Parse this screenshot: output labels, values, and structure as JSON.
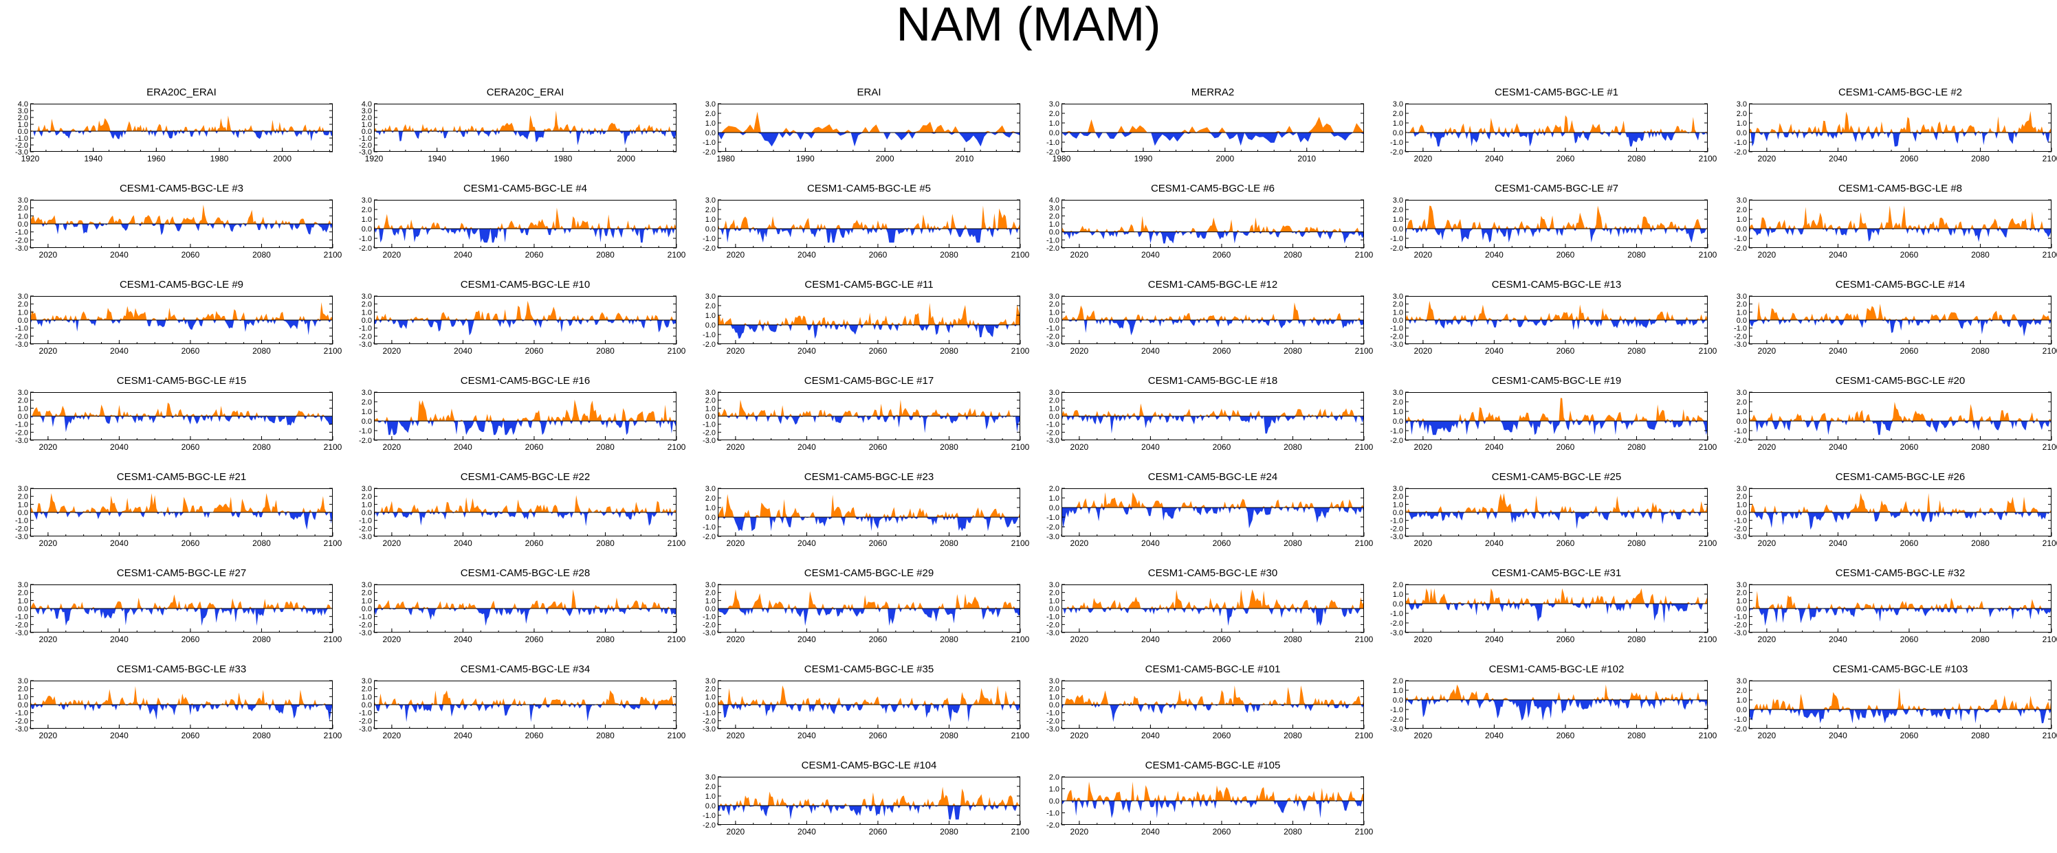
{
  "figure_title": "NAM (MAM)",
  "colors": {
    "positive": "#ff8000",
    "negative": "#1a3de6",
    "axis": "#000000"
  },
  "chart_data": {
    "type": "area",
    "note": "Shaded time series of the NAM index for MAM; positive values orange, negative values blue.",
    "panels": [
      {
        "title": "ERA20C_ERAI",
        "x_range": [
          1920,
          2016
        ],
        "x_ticks": [
          "1920",
          "1940",
          "1960",
          "1980",
          "2000"
        ],
        "y_ticks": [
          "4.0",
          "3.0",
          "2.0",
          "1.0",
          "0.0",
          "-1.0",
          "-2.0",
          "-3.0"
        ],
        "y_range": [
          -3,
          4
        ]
      },
      {
        "title": "CERA20C_ERAI",
        "x_range": [
          1920,
          2016
        ],
        "x_ticks": [
          "1920",
          "1940",
          "1960",
          "1980",
          "2000"
        ],
        "y_ticks": [
          "4.0",
          "3.0",
          "2.0",
          "1.0",
          "0.0",
          "-1.0",
          "-2.0",
          "-3.0"
        ],
        "y_range": [
          -3,
          4
        ]
      },
      {
        "title": "ERAI",
        "x_range": [
          1979,
          2017
        ],
        "x_ticks": [
          "1980",
          "1990",
          "2000",
          "2010"
        ],
        "y_ticks": [
          "3.0",
          "2.0",
          "1.0",
          "0.0",
          "-1.0",
          "-2.0"
        ],
        "y_range": [
          -2,
          3
        ]
      },
      {
        "title": "MERRA2",
        "x_range": [
          1980,
          2017
        ],
        "x_ticks": [
          "1980",
          "1990",
          "2000",
          "2010"
        ],
        "y_ticks": [
          "3.0",
          "2.0",
          "1.0",
          "0.0",
          "-1.0",
          "-2.0"
        ],
        "y_range": [
          -2,
          3
        ]
      },
      {
        "title": "CESM1-CAM5-BGC-LE #1",
        "x_range": [
          2015,
          2100
        ],
        "x_ticks": [
          "2020",
          "2040",
          "2060",
          "2080",
          "2100"
        ],
        "y_ticks": [
          "3.0",
          "2.0",
          "1.0",
          "0.0",
          "-1.0",
          "-2.0"
        ],
        "y_range": [
          -2,
          3
        ]
      },
      {
        "title": "CESM1-CAM5-BGC-LE #2",
        "x_range": [
          2015,
          2100
        ],
        "x_ticks": [
          "2020",
          "2040",
          "2060",
          "2080",
          "2100"
        ],
        "y_ticks": [
          "3.0",
          "2.0",
          "1.0",
          "0.0",
          "-1.0",
          "-2.0"
        ],
        "y_range": [
          -2,
          3
        ]
      },
      {
        "title": "CESM1-CAM5-BGC-LE #3",
        "x_range": [
          2015,
          2100
        ],
        "x_ticks": [
          "2020",
          "2040",
          "2060",
          "2080",
          "2100"
        ],
        "y_ticks": [
          "3.0",
          "2.0",
          "1.0",
          "0.0",
          "-1.0",
          "-2.0",
          "-3.0"
        ],
        "y_range": [
          -3,
          3
        ]
      },
      {
        "title": "CESM1-CAM5-BGC-LE #4",
        "x_range": [
          2015,
          2100
        ],
        "x_ticks": [
          "2020",
          "2040",
          "2060",
          "2080",
          "2100"
        ],
        "y_ticks": [
          "3.0",
          "2.0",
          "1.0",
          "0.0",
          "-1.0",
          "-2.0"
        ],
        "y_range": [
          -2,
          3
        ]
      },
      {
        "title": "CESM1-CAM5-BGC-LE #5",
        "x_range": [
          2015,
          2100
        ],
        "x_ticks": [
          "2020",
          "2040",
          "2060",
          "2080",
          "2100"
        ],
        "y_ticks": [
          "3.0",
          "2.0",
          "1.0",
          "0.0",
          "-1.0",
          "-2.0"
        ],
        "y_range": [
          -2,
          3
        ]
      },
      {
        "title": "CESM1-CAM5-BGC-LE #6",
        "x_range": [
          2015,
          2100
        ],
        "x_ticks": [
          "2020",
          "2040",
          "2060",
          "2080",
          "2100"
        ],
        "y_ticks": [
          "4.0",
          "3.0",
          "2.0",
          "1.0",
          "0.0",
          "-1.0",
          "-2.0"
        ],
        "y_range": [
          -2,
          4
        ]
      },
      {
        "title": "CESM1-CAM5-BGC-LE #7",
        "x_range": [
          2015,
          2100
        ],
        "x_ticks": [
          "2020",
          "2040",
          "2060",
          "2080",
          "2100"
        ],
        "y_ticks": [
          "3.0",
          "2.0",
          "1.0",
          "0.0",
          "-1.0",
          "-2.0"
        ],
        "y_range": [
          -2,
          3
        ]
      },
      {
        "title": "CESM1-CAM5-BGC-LE #8",
        "x_range": [
          2015,
          2100
        ],
        "x_ticks": [
          "2020",
          "2040",
          "2060",
          "2080",
          "2100"
        ],
        "y_ticks": [
          "3.0",
          "2.0",
          "1.0",
          "0.0",
          "-1.0",
          "-2.0"
        ],
        "y_range": [
          -2,
          3
        ]
      },
      {
        "title": "CESM1-CAM5-BGC-LE #9",
        "x_range": [
          2015,
          2100
        ],
        "x_ticks": [
          "2020",
          "2040",
          "2060",
          "2080",
          "2100"
        ],
        "y_ticks": [
          "3.0",
          "2.0",
          "1.0",
          "0.0",
          "-1.0",
          "-2.0",
          "-3.0"
        ],
        "y_range": [
          -3,
          3
        ]
      },
      {
        "title": "CESM1-CAM5-BGC-LE #10",
        "x_range": [
          2015,
          2100
        ],
        "x_ticks": [
          "2020",
          "2040",
          "2060",
          "2080",
          "2100"
        ],
        "y_ticks": [
          "3.0",
          "2.0",
          "1.0",
          "0.0",
          "-1.0",
          "-2.0",
          "-3.0"
        ],
        "y_range": [
          -3,
          3
        ]
      },
      {
        "title": "CESM1-CAM5-BGC-LE #11",
        "x_range": [
          2015,
          2100
        ],
        "x_ticks": [
          "2020",
          "2040",
          "2060",
          "2080",
          "2100"
        ],
        "y_ticks": [
          "3.0",
          "2.0",
          "1.0",
          "0.0",
          "-1.0",
          "-2.0"
        ],
        "y_range": [
          -2,
          3
        ]
      },
      {
        "title": "CESM1-CAM5-BGC-LE #12",
        "x_range": [
          2015,
          2100
        ],
        "x_ticks": [
          "2020",
          "2040",
          "2060",
          "2080",
          "2100"
        ],
        "y_ticks": [
          "3.0",
          "2.0",
          "1.0",
          "0.0",
          "-1.0",
          "-2.0",
          "-3.0"
        ],
        "y_range": [
          -3,
          3
        ]
      },
      {
        "title": "CESM1-CAM5-BGC-LE #13",
        "x_range": [
          2015,
          2100
        ],
        "x_ticks": [
          "2020",
          "2040",
          "2060",
          "2080",
          "2100"
        ],
        "y_ticks": [
          "3.0",
          "2.0",
          "1.0",
          "0.0",
          "-1.0",
          "-2.0",
          "-3.0"
        ],
        "y_range": [
          -3,
          3
        ]
      },
      {
        "title": "CESM1-CAM5-BGC-LE #14",
        "x_range": [
          2015,
          2100
        ],
        "x_ticks": [
          "2020",
          "2040",
          "2060",
          "2080",
          "2100"
        ],
        "y_ticks": [
          "3.0",
          "2.0",
          "1.0",
          "0.0",
          "-1.0",
          "-2.0",
          "-3.0"
        ],
        "y_range": [
          -3,
          3
        ]
      },
      {
        "title": "CESM1-CAM5-BGC-LE #15",
        "x_range": [
          2015,
          2100
        ],
        "x_ticks": [
          "2020",
          "2040",
          "2060",
          "2080",
          "2100"
        ],
        "y_ticks": [
          "3.0",
          "2.0",
          "1.0",
          "0.0",
          "-1.0",
          "-2.0",
          "-3.0"
        ],
        "y_range": [
          -3,
          3
        ]
      },
      {
        "title": "CESM1-CAM5-BGC-LE #16",
        "x_range": [
          2015,
          2100
        ],
        "x_ticks": [
          "2020",
          "2040",
          "2060",
          "2080",
          "2100"
        ],
        "y_ticks": [
          "3.0",
          "2.0",
          "1.0",
          "0.0",
          "-1.0",
          "-2.0"
        ],
        "y_range": [
          -2,
          3
        ]
      },
      {
        "title": "CESM1-CAM5-BGC-LE #17",
        "x_range": [
          2015,
          2100
        ],
        "x_ticks": [
          "2020",
          "2040",
          "2060",
          "2080",
          "2100"
        ],
        "y_ticks": [
          "3.0",
          "2.0",
          "1.0",
          "0.0",
          "-1.0",
          "-2.0",
          "-3.0"
        ],
        "y_range": [
          -3,
          3
        ]
      },
      {
        "title": "CESM1-CAM5-BGC-LE #18",
        "x_range": [
          2015,
          2100
        ],
        "x_ticks": [
          "2020",
          "2040",
          "2060",
          "2080",
          "2100"
        ],
        "y_ticks": [
          "3.0",
          "2.0",
          "1.0",
          "0.0",
          "-1.0",
          "-2.0",
          "-3.0"
        ],
        "y_range": [
          -3,
          3
        ]
      },
      {
        "title": "CESM1-CAM5-BGC-LE #19",
        "x_range": [
          2015,
          2100
        ],
        "x_ticks": [
          "2020",
          "2040",
          "2060",
          "2080",
          "2100"
        ],
        "y_ticks": [
          "3.0",
          "2.0",
          "1.0",
          "0.0",
          "-1.0",
          "-2.0"
        ],
        "y_range": [
          -2,
          3
        ]
      },
      {
        "title": "CESM1-CAM5-BGC-LE #20",
        "x_range": [
          2015,
          2100
        ],
        "x_ticks": [
          "2020",
          "2040",
          "2060",
          "2080",
          "2100"
        ],
        "y_ticks": [
          "3.0",
          "2.0",
          "1.0",
          "0.0",
          "-1.0",
          "-2.0"
        ],
        "y_range": [
          -2,
          3
        ]
      },
      {
        "title": "CESM1-CAM5-BGC-LE #21",
        "x_range": [
          2015,
          2100
        ],
        "x_ticks": [
          "2020",
          "2040",
          "2060",
          "2080",
          "2100"
        ],
        "y_ticks": [
          "3.0",
          "2.0",
          "1.0",
          "0.0",
          "-1.0",
          "-2.0",
          "-3.0"
        ],
        "y_range": [
          -3,
          3
        ]
      },
      {
        "title": "CESM1-CAM5-BGC-LE #22",
        "x_range": [
          2015,
          2100
        ],
        "x_ticks": [
          "2020",
          "2040",
          "2060",
          "2080",
          "2100"
        ],
        "y_ticks": [
          "3.0",
          "2.0",
          "1.0",
          "0.0",
          "-1.0",
          "-2.0",
          "-3.0"
        ],
        "y_range": [
          -3,
          3
        ]
      },
      {
        "title": "CESM1-CAM5-BGC-LE #23",
        "x_range": [
          2015,
          2100
        ],
        "x_ticks": [
          "2020",
          "2040",
          "2060",
          "2080",
          "2100"
        ],
        "y_ticks": [
          "3.0",
          "2.0",
          "1.0",
          "0.0",
          "-1.0",
          "-2.0"
        ],
        "y_range": [
          -2,
          3
        ]
      },
      {
        "title": "CESM1-CAM5-BGC-LE #24",
        "x_range": [
          2015,
          2100
        ],
        "x_ticks": [
          "2020",
          "2040",
          "2060",
          "2080",
          "2100"
        ],
        "y_ticks": [
          "2.0",
          "1.0",
          "0.0",
          "-1.0",
          "-2.0",
          "-3.0"
        ],
        "y_range": [
          -3,
          2
        ]
      },
      {
        "title": "CESM1-CAM5-BGC-LE #25",
        "x_range": [
          2015,
          2100
        ],
        "x_ticks": [
          "2020",
          "2040",
          "2060",
          "2080",
          "2100"
        ],
        "y_ticks": [
          "3.0",
          "2.0",
          "1.0",
          "0.0",
          "-1.0",
          "-2.0",
          "-3.0"
        ],
        "y_range": [
          -3,
          3
        ]
      },
      {
        "title": "CESM1-CAM5-BGC-LE #26",
        "x_range": [
          2015,
          2100
        ],
        "x_ticks": [
          "2020",
          "2040",
          "2060",
          "2080",
          "2100"
        ],
        "y_ticks": [
          "3.0",
          "2.0",
          "1.0",
          "0.0",
          "-1.0",
          "-2.0",
          "-3.0"
        ],
        "y_range": [
          -3,
          3
        ]
      },
      {
        "title": "CESM1-CAM5-BGC-LE #27",
        "x_range": [
          2015,
          2100
        ],
        "x_ticks": [
          "2020",
          "2040",
          "2060",
          "2080",
          "2100"
        ],
        "y_ticks": [
          "3.0",
          "2.0",
          "1.0",
          "0.0",
          "-1.0",
          "-2.0",
          "-3.0"
        ],
        "y_range": [
          -3,
          3
        ]
      },
      {
        "title": "CESM1-CAM5-BGC-LE #28",
        "x_range": [
          2015,
          2100
        ],
        "x_ticks": [
          "2020",
          "2040",
          "2060",
          "2080",
          "2100"
        ],
        "y_ticks": [
          "3.0",
          "2.0",
          "1.0",
          "0.0",
          "-1.0",
          "-2.0",
          "-3.0"
        ],
        "y_range": [
          -3,
          3
        ]
      },
      {
        "title": "CESM1-CAM5-BGC-LE #29",
        "x_range": [
          2015,
          2100
        ],
        "x_ticks": [
          "2020",
          "2040",
          "2060",
          "2080",
          "2100"
        ],
        "y_ticks": [
          "3.0",
          "2.0",
          "1.0",
          "0.0",
          "-1.0",
          "-2.0",
          "-3.0"
        ],
        "y_range": [
          -3,
          3
        ]
      },
      {
        "title": "CESM1-CAM5-BGC-LE #30",
        "x_range": [
          2015,
          2100
        ],
        "x_ticks": [
          "2020",
          "2040",
          "2060",
          "2080",
          "2100"
        ],
        "y_ticks": [
          "3.0",
          "2.0",
          "1.0",
          "0.0",
          "-1.0",
          "-2.0",
          "-3.0"
        ],
        "y_range": [
          -3,
          3
        ]
      },
      {
        "title": "CESM1-CAM5-BGC-LE #31",
        "x_range": [
          2015,
          2100
        ],
        "x_ticks": [
          "2020",
          "2040",
          "2060",
          "2080",
          "2100"
        ],
        "y_ticks": [
          "2.0",
          "1.0",
          "0.0",
          "-1.0",
          "-2.0",
          "-3.0"
        ],
        "y_range": [
          -3,
          2
        ]
      },
      {
        "title": "CESM1-CAM5-BGC-LE #32",
        "x_range": [
          2015,
          2100
        ],
        "x_ticks": [
          "2020",
          "2040",
          "2060",
          "2080",
          "2100"
        ],
        "y_ticks": [
          "3.0",
          "2.0",
          "1.0",
          "0.0",
          "-1.0",
          "-2.0",
          "-3.0"
        ],
        "y_range": [
          -3,
          3
        ]
      },
      {
        "title": "CESM1-CAM5-BGC-LE #33",
        "x_range": [
          2015,
          2100
        ],
        "x_ticks": [
          "2020",
          "2040",
          "2060",
          "2080",
          "2100"
        ],
        "y_ticks": [
          "3.0",
          "2.0",
          "1.0",
          "0.0",
          "-1.0",
          "-2.0",
          "-3.0"
        ],
        "y_range": [
          -3,
          3
        ]
      },
      {
        "title": "CESM1-CAM5-BGC-LE #34",
        "x_range": [
          2015,
          2100
        ],
        "x_ticks": [
          "2020",
          "2040",
          "2060",
          "2080",
          "2100"
        ],
        "y_ticks": [
          "3.0",
          "2.0",
          "1.0",
          "0.0",
          "-1.0",
          "-2.0",
          "-3.0"
        ],
        "y_range": [
          -3,
          3
        ]
      },
      {
        "title": "CESM1-CAM5-BGC-LE #35",
        "x_range": [
          2015,
          2100
        ],
        "x_ticks": [
          "2020",
          "2040",
          "2060",
          "2080",
          "2100"
        ],
        "y_ticks": [
          "3.0",
          "2.0",
          "1.0",
          "0.0",
          "-1.0",
          "-2.0",
          "-3.0"
        ],
        "y_range": [
          -3,
          3
        ]
      },
      {
        "title": "CESM1-CAM5-BGC-LE #101",
        "x_range": [
          2015,
          2100
        ],
        "x_ticks": [
          "2020",
          "2040",
          "2060",
          "2080",
          "2100"
        ],
        "y_ticks": [
          "3.0",
          "2.0",
          "1.0",
          "0.0",
          "-1.0",
          "-2.0",
          "-3.0"
        ],
        "y_range": [
          -3,
          3
        ]
      },
      {
        "title": "CESM1-CAM5-BGC-LE #102",
        "x_range": [
          2015,
          2100
        ],
        "x_ticks": [
          "2020",
          "2040",
          "2060",
          "2080",
          "2100"
        ],
        "y_ticks": [
          "2.0",
          "1.0",
          "0.0",
          "-1.0",
          "-2.0",
          "-3.0"
        ],
        "y_range": [
          -3,
          2
        ]
      },
      {
        "title": "CESM1-CAM5-BGC-LE #103",
        "x_range": [
          2015,
          2100
        ],
        "x_ticks": [
          "2020",
          "2040",
          "2060",
          "2080",
          "2100"
        ],
        "y_ticks": [
          "3.0",
          "2.0",
          "1.0",
          "0.0",
          "-1.0",
          "-2.0"
        ],
        "y_range": [
          -2,
          3
        ]
      },
      {
        "title": "CESM1-CAM5-BGC-LE #104",
        "x_range": [
          2015,
          2100
        ],
        "x_ticks": [
          "2020",
          "2040",
          "2060",
          "2080",
          "2100"
        ],
        "y_ticks": [
          "3.0",
          "2.0",
          "1.0",
          "0.0",
          "-1.0",
          "-2.0"
        ],
        "y_range": [
          -2,
          3
        ]
      },
      {
        "title": "CESM1-CAM5-BGC-LE #105",
        "x_range": [
          2015,
          2100
        ],
        "x_ticks": [
          "2020",
          "2040",
          "2060",
          "2080",
          "2100"
        ],
        "y_ticks": [
          "2.0",
          "1.0",
          "0.0",
          "-1.0",
          "-2.0"
        ],
        "y_range": [
          -2,
          2
        ]
      }
    ]
  }
}
